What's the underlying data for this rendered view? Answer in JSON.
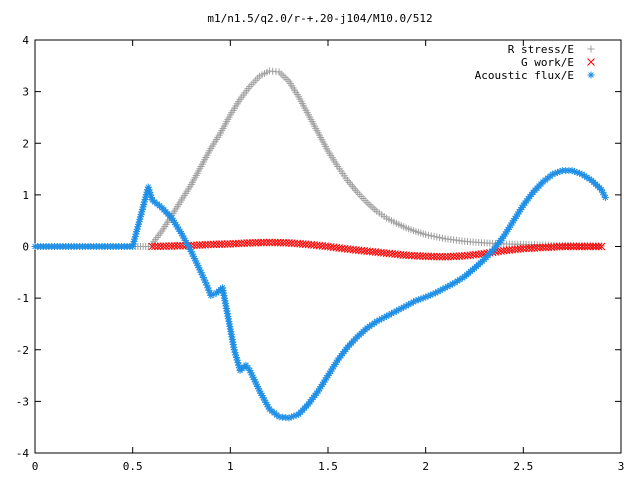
{
  "chart_data": {
    "type": "scatter",
    "title": "m1/n1.5/q2.0/r-+.20-j104/M10.0/512",
    "xlabel": "",
    "ylabel": "",
    "xlim": [
      0,
      3
    ],
    "ylim": [
      -4,
      4
    ],
    "xticks": [
      "0",
      "0.5",
      "1",
      "1.5",
      "2",
      "2.5",
      "3"
    ],
    "yticks": [
      "-4",
      "-3",
      "-2",
      "-1",
      "0",
      "1",
      "2",
      "3",
      "4"
    ],
    "grid": false,
    "legend_position": "top-right",
    "series": [
      {
        "name": "R stress/E",
        "marker": "plus",
        "color": "#a0a0a0",
        "points": [
          [
            0.0,
            0
          ],
          [
            0.1,
            0
          ],
          [
            0.2,
            0
          ],
          [
            0.3,
            0
          ],
          [
            0.4,
            0
          ],
          [
            0.5,
            0
          ],
          [
            0.58,
            0
          ],
          [
            0.6,
            0.05
          ],
          [
            0.65,
            0.3
          ],
          [
            0.7,
            0.6
          ],
          [
            0.75,
            0.9
          ],
          [
            0.8,
            1.2
          ],
          [
            0.85,
            1.55
          ],
          [
            0.9,
            1.9
          ],
          [
            0.95,
            2.2
          ],
          [
            1.0,
            2.55
          ],
          [
            1.05,
            2.85
          ],
          [
            1.1,
            3.1
          ],
          [
            1.15,
            3.3
          ],
          [
            1.2,
            3.4
          ],
          [
            1.25,
            3.38
          ],
          [
            1.3,
            3.2
          ],
          [
            1.35,
            2.9
          ],
          [
            1.4,
            2.55
          ],
          [
            1.45,
            2.2
          ],
          [
            1.5,
            1.85
          ],
          [
            1.55,
            1.55
          ],
          [
            1.6,
            1.28
          ],
          [
            1.65,
            1.05
          ],
          [
            1.7,
            0.85
          ],
          [
            1.75,
            0.68
          ],
          [
            1.8,
            0.55
          ],
          [
            1.85,
            0.45
          ],
          [
            1.9,
            0.36
          ],
          [
            1.95,
            0.29
          ],
          [
            2.0,
            0.23
          ],
          [
            2.1,
            0.15
          ],
          [
            2.2,
            0.1
          ],
          [
            2.3,
            0.07
          ],
          [
            2.4,
            0.05
          ],
          [
            2.5,
            0.04
          ],
          [
            2.6,
            0.03
          ],
          [
            2.7,
            0.02
          ],
          [
            2.8,
            0.02
          ],
          [
            2.9,
            0.01
          ]
        ]
      },
      {
        "name": "G work/E",
        "marker": "cross",
        "color": "#ff0000",
        "points": [
          [
            0.6,
            0
          ],
          [
            0.7,
            0.01
          ],
          [
            0.8,
            0.02
          ],
          [
            0.9,
            0.04
          ],
          [
            1.0,
            0.05
          ],
          [
            1.1,
            0.07
          ],
          [
            1.2,
            0.08
          ],
          [
            1.3,
            0.07
          ],
          [
            1.4,
            0.04
          ],
          [
            1.5,
            0
          ],
          [
            1.6,
            -0.05
          ],
          [
            1.7,
            -0.09
          ],
          [
            1.8,
            -0.13
          ],
          [
            1.9,
            -0.17
          ],
          [
            2.0,
            -0.19
          ],
          [
            2.1,
            -0.2
          ],
          [
            2.2,
            -0.18
          ],
          [
            2.3,
            -0.14
          ],
          [
            2.4,
            -0.08
          ],
          [
            2.5,
            -0.04
          ],
          [
            2.6,
            -0.02
          ],
          [
            2.7,
            0
          ],
          [
            2.8,
            0
          ],
          [
            2.9,
            0
          ]
        ]
      },
      {
        "name": "Acoustic flux/E",
        "marker": "star",
        "color": "#1e8fe6",
        "points": [
          [
            0.0,
            0
          ],
          [
            0.1,
            0
          ],
          [
            0.2,
            0
          ],
          [
            0.3,
            0
          ],
          [
            0.4,
            0
          ],
          [
            0.5,
            0
          ],
          [
            0.58,
            1.15
          ],
          [
            0.6,
            0.9
          ],
          [
            0.65,
            0.75
          ],
          [
            0.7,
            0.55
          ],
          [
            0.75,
            0.25
          ],
          [
            0.8,
            -0.1
          ],
          [
            0.85,
            -0.5
          ],
          [
            0.88,
            -0.75
          ],
          [
            0.9,
            -0.95
          ],
          [
            0.93,
            -0.9
          ],
          [
            0.96,
            -0.8
          ],
          [
            0.98,
            -1.2
          ],
          [
            1.0,
            -1.6
          ],
          [
            1.02,
            -2.0
          ],
          [
            1.05,
            -2.4
          ],
          [
            1.08,
            -2.3
          ],
          [
            1.1,
            -2.4
          ],
          [
            1.15,
            -2.8
          ],
          [
            1.2,
            -3.15
          ],
          [
            1.25,
            -3.3
          ],
          [
            1.3,
            -3.32
          ],
          [
            1.35,
            -3.25
          ],
          [
            1.4,
            -3.05
          ],
          [
            1.45,
            -2.8
          ],
          [
            1.5,
            -2.5
          ],
          [
            1.55,
            -2.2
          ],
          [
            1.6,
            -1.95
          ],
          [
            1.65,
            -1.75
          ],
          [
            1.7,
            -1.58
          ],
          [
            1.75,
            -1.45
          ],
          [
            1.8,
            -1.35
          ],
          [
            1.85,
            -1.25
          ],
          [
            1.9,
            -1.15
          ],
          [
            1.95,
            -1.05
          ],
          [
            2.0,
            -0.98
          ],
          [
            2.05,
            -0.9
          ],
          [
            2.1,
            -0.8
          ],
          [
            2.15,
            -0.7
          ],
          [
            2.2,
            -0.58
          ],
          [
            2.25,
            -0.42
          ],
          [
            2.3,
            -0.25
          ],
          [
            2.35,
            -0.05
          ],
          [
            2.4,
            0.2
          ],
          [
            2.45,
            0.5
          ],
          [
            2.5,
            0.8
          ],
          [
            2.55,
            1.05
          ],
          [
            2.6,
            1.25
          ],
          [
            2.65,
            1.4
          ],
          [
            2.7,
            1.47
          ],
          [
            2.75,
            1.47
          ],
          [
            2.8,
            1.4
          ],
          [
            2.85,
            1.28
          ],
          [
            2.9,
            1.1
          ],
          [
            2.92,
            0.95
          ]
        ]
      }
    ]
  }
}
